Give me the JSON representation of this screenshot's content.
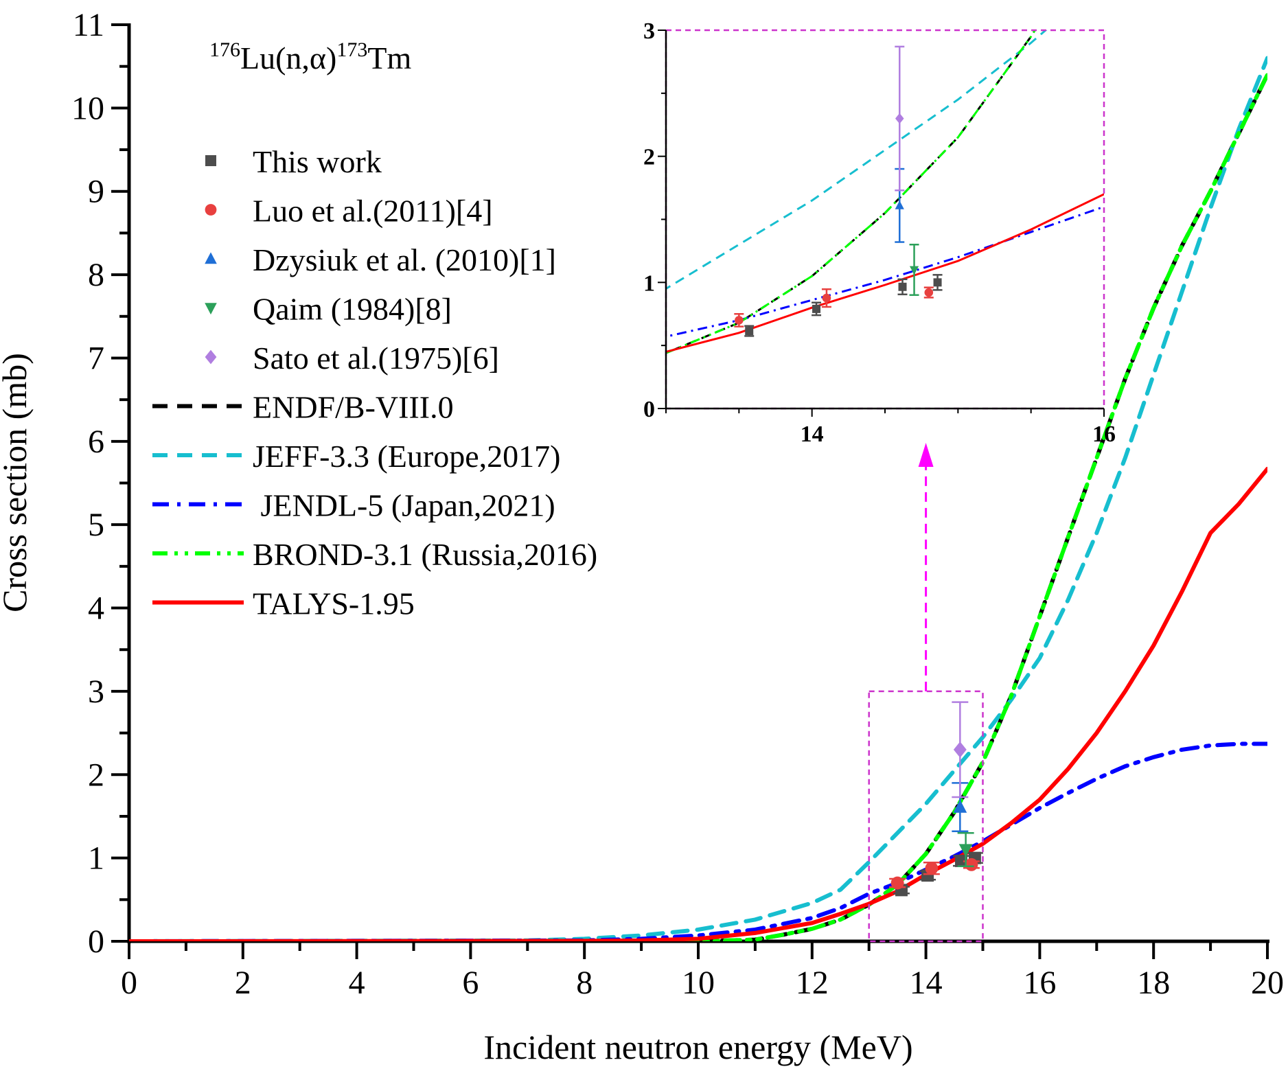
{
  "chart_data": {
    "type": "line",
    "title": "",
    "reaction_label": {
      "pre_sup": "176",
      "main": "Lu(n,α)",
      "mid_sup": "173",
      "tail": "Tm"
    },
    "xlabel": "Incident neutron energy (MeV)",
    "ylabel": "Cross section (mb)",
    "xlim": [
      0,
      20
    ],
    "ylim": [
      0,
      11
    ],
    "xticks": [
      0,
      2,
      4,
      6,
      8,
      10,
      12,
      14,
      16,
      18,
      20
    ],
    "yticks": [
      0,
      1,
      2,
      3,
      4,
      5,
      6,
      7,
      8,
      9,
      10,
      11
    ],
    "grid": false,
    "legend_position": "upper-left",
    "series": [
      {
        "name": "ENDF/B-VIII.0",
        "kind": "line",
        "style": "dash",
        "color": "#000000",
        "x": [
          0,
          8,
          10,
          11,
          11.5,
          12,
          12.5,
          13,
          13.5,
          14,
          14.5,
          15,
          15.5,
          16,
          16.5,
          17,
          17.5,
          18,
          18.5,
          19,
          19.5,
          20
        ],
        "y": [
          0,
          0,
          0,
          0.02,
          0.08,
          0.15,
          0.26,
          0.44,
          0.68,
          1.05,
          1.55,
          2.15,
          2.95,
          3.9,
          4.85,
          5.8,
          6.75,
          7.6,
          8.35,
          9.0,
          9.7,
          10.4
        ]
      },
      {
        "name": "JEFF-3.3 (Europe,2017)",
        "kind": "line",
        "style": "dash",
        "color": "#17becf",
        "x": [
          0,
          7,
          8,
          9,
          10,
          11,
          12,
          12.5,
          13,
          13.5,
          14,
          14.5,
          15,
          15.5,
          16,
          16.5,
          17,
          17.5,
          18,
          18.5,
          19,
          19.5,
          20
        ],
        "y": [
          0,
          0.01,
          0.03,
          0.07,
          0.14,
          0.26,
          0.46,
          0.62,
          0.95,
          1.3,
          1.65,
          2.05,
          2.45,
          2.9,
          3.4,
          4.1,
          4.9,
          5.8,
          6.8,
          7.8,
          8.8,
          9.75,
          10.6
        ]
      },
      {
        "name": "JENDL-5 (Japan,2021)",
        "kind": "line",
        "style": "dashdot",
        "color": "#0000ff",
        "x": [
          0,
          8,
          9,
          10,
          11,
          12,
          12.5,
          13,
          13.5,
          14,
          14.5,
          15,
          15.5,
          16,
          16.5,
          17,
          17.5,
          18,
          18.5,
          19,
          19.5,
          20
        ],
        "y": [
          0,
          0.01,
          0.03,
          0.07,
          0.14,
          0.28,
          0.4,
          0.57,
          0.7,
          0.86,
          1.02,
          1.2,
          1.4,
          1.6,
          1.78,
          1.95,
          2.1,
          2.21,
          2.3,
          2.35,
          2.37,
          2.37
        ]
      },
      {
        "name": "BROND-3.1 (Russia,2016)",
        "kind": "line",
        "style": "dashdotdot",
        "color": "#00ff00",
        "x": [
          0,
          8,
          10,
          11,
          11.5,
          12,
          12.5,
          13,
          13.5,
          14,
          14.5,
          15,
          15.5,
          16,
          16.5,
          17,
          17.5,
          18,
          18.5,
          19,
          19.5,
          20
        ],
        "y": [
          0,
          0,
          0,
          0.02,
          0.08,
          0.15,
          0.26,
          0.44,
          0.68,
          1.05,
          1.55,
          2.15,
          2.95,
          3.9,
          4.85,
          5.8,
          6.75,
          7.6,
          8.35,
          9.0,
          9.7,
          10.4
        ]
      },
      {
        "name": "TALYS-1.95",
        "kind": "line",
        "style": "solid",
        "color": "#ff0000",
        "x": [
          0,
          8,
          9,
          10,
          11,
          12,
          12.5,
          13,
          13.5,
          14,
          14.5,
          15,
          15.5,
          16,
          16.5,
          17,
          17.5,
          18,
          18.5,
          19,
          19.5,
          20
        ],
        "y": [
          0,
          0.005,
          0.01,
          0.03,
          0.1,
          0.22,
          0.33,
          0.45,
          0.6,
          0.8,
          0.98,
          1.17,
          1.42,
          1.7,
          2.07,
          2.5,
          3.0,
          3.55,
          4.2,
          4.9,
          5.25,
          5.67
        ]
      },
      {
        "name": "This work",
        "kind": "scatter",
        "marker": "square",
        "color": "#4d4d4d",
        "x": [
          13.57,
          14.03,
          14.62,
          14.86
        ],
        "y": [
          0.615,
          0.79,
          0.965,
          1.0
        ],
        "yerr": [
          0.04,
          0.05,
          0.06,
          0.06
        ]
      },
      {
        "name": "Luo et al.(2011)[4]",
        "kind": "scatter",
        "marker": "circle",
        "color": "#e8403f",
        "x": [
          13.5,
          14.1,
          14.8
        ],
        "y": [
          0.7,
          0.876,
          0.92
        ],
        "yerr": [
          0.05,
          0.07,
          0.04
        ]
      },
      {
        "name": "Dzysiuk et al. (2010)[1]",
        "kind": "scatter",
        "marker": "triangle-up",
        "color": "#1f6fd6",
        "x": [
          14.6
        ],
        "y": [
          1.61
        ],
        "yerr": [
          0.29
        ]
      },
      {
        "name": "Qaim (1984)[8]",
        "kind": "scatter",
        "marker": "triangle-down",
        "color": "#2ca05a",
        "x": [
          14.7
        ],
        "y": [
          1.1
        ],
        "yerr": [
          0.2
        ]
      },
      {
        "name": "Sato et al.(1975)[6]",
        "kind": "scatter",
        "marker": "diamond",
        "color": "#b07ee0",
        "x": [
          14.6
        ],
        "y": [
          2.3
        ],
        "yerr": [
          0.57
        ]
      }
    ],
    "inset": {
      "xlim": [
        13,
        16
      ],
      "ylim": [
        0,
        3
      ],
      "xticks": [
        14,
        16
      ],
      "yticks": [
        0,
        1,
        2,
        3
      ],
      "zoom_box_color": "#cc33cc",
      "arrow_color": "#ff00ff"
    }
  },
  "legend": {
    "items": [
      {
        "label": "This work",
        "marker": "square",
        "color": "#4d4d4d"
      },
      {
        "label": "Luo et al.(2011)[4]",
        "marker": "circle",
        "color": "#e8403f"
      },
      {
        "label": "Dzysiuk et al. (2010)[1]",
        "marker": "triangle-up",
        "color": "#1f6fd6"
      },
      {
        "label": "Qaim (1984)[8]",
        "marker": "triangle-down",
        "color": "#2ca05a"
      },
      {
        "label": "Sato et al.(1975)[6]",
        "marker": "diamond",
        "color": "#b07ee0"
      },
      {
        "label": "ENDF/B-VIII.0",
        "line": "dash",
        "color": "#000000"
      },
      {
        "label": "JEFF-3.3 (Europe,2017)",
        "line": "dash",
        "color": "#17becf"
      },
      {
        "label": " JENDL-5 (Japan,2021)",
        "line": "dashdot",
        "color": "#0000ff"
      },
      {
        "label": "BROND-3.1 (Russia,2016)",
        "line": "dashdotdot",
        "color": "#00ff00"
      },
      {
        "label": "TALYS-1.95",
        "line": "solid",
        "color": "#ff0000"
      }
    ]
  }
}
